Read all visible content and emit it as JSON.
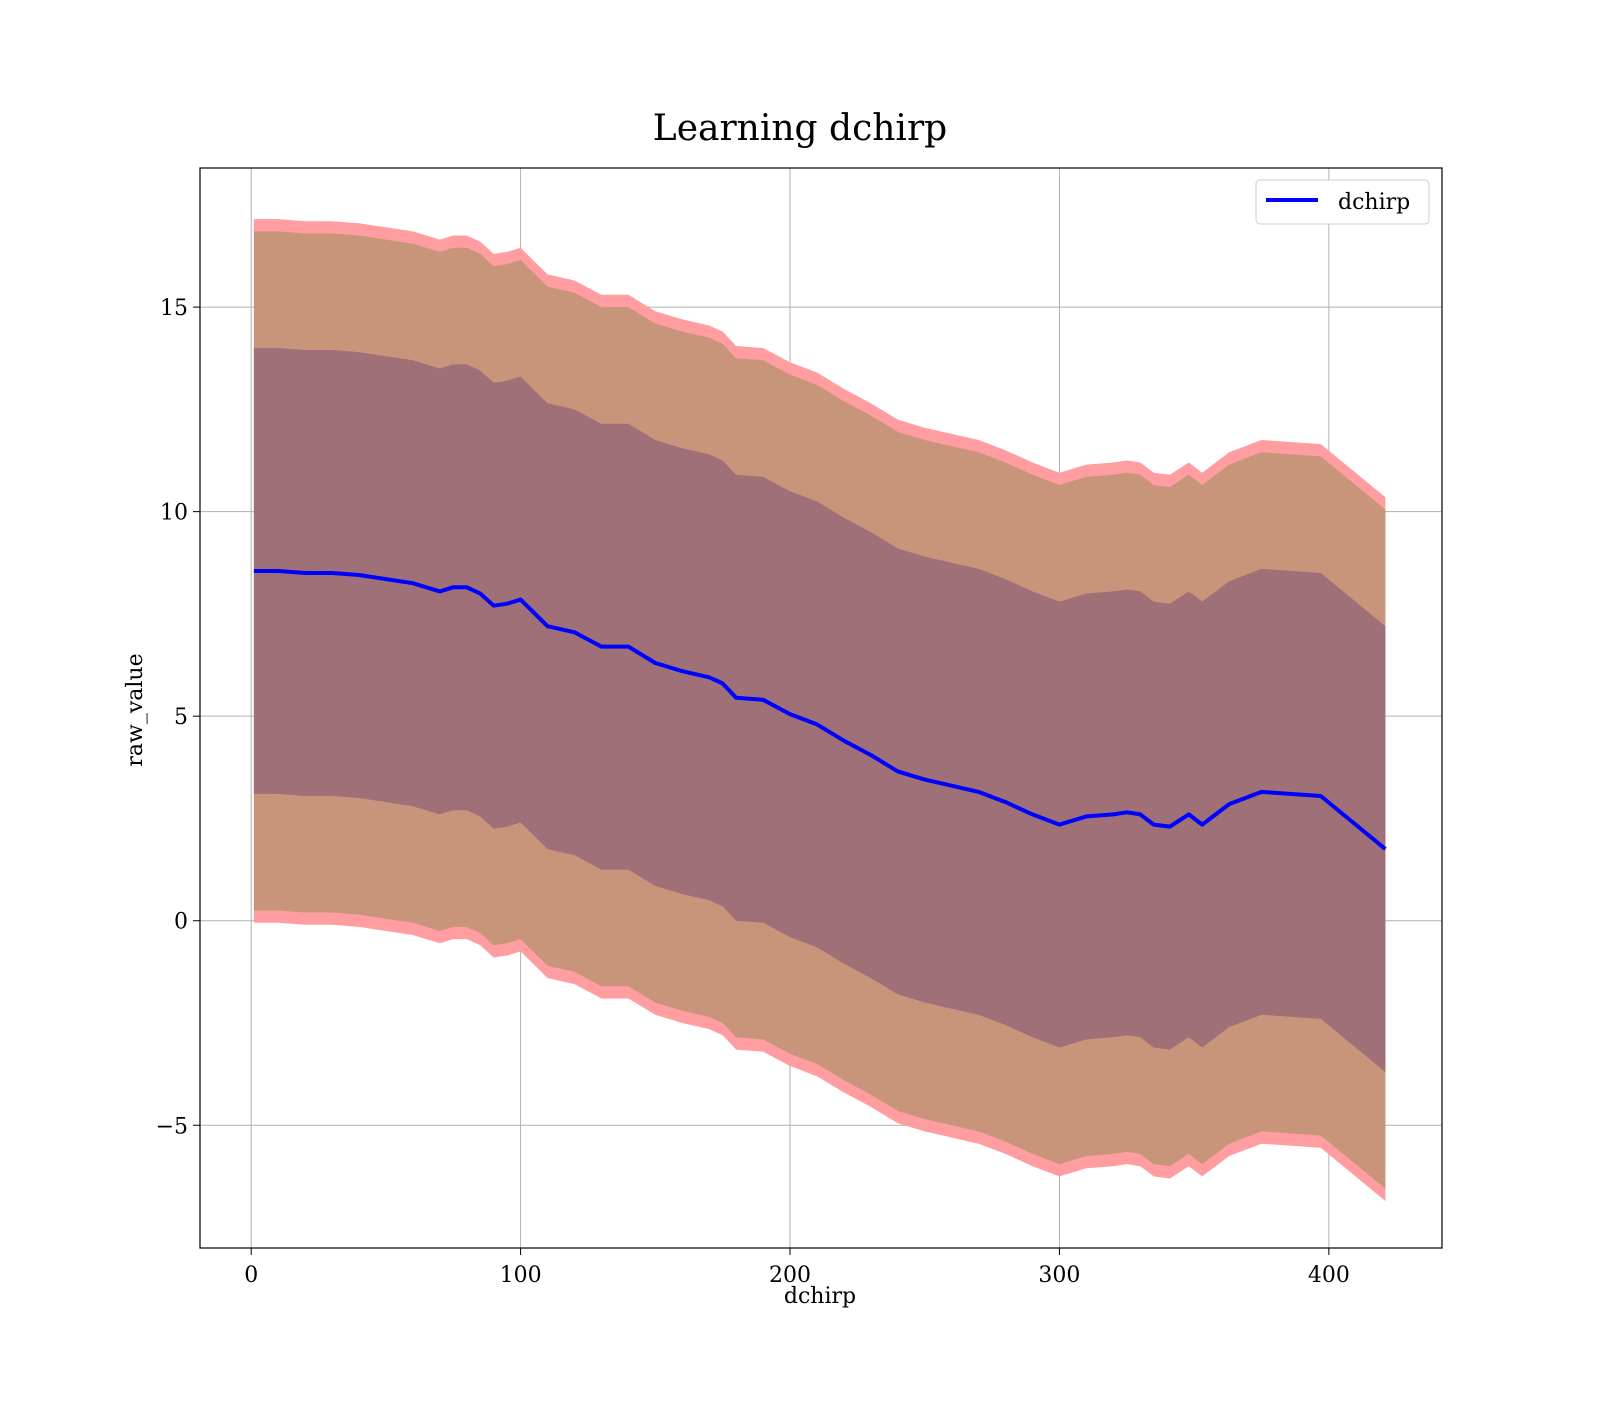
{
  "chart_data": {
    "type": "line",
    "title": "Learning dchirp",
    "xlabel": "dchirp",
    "ylabel": "raw_value",
    "xlim": [
      -19,
      442
    ],
    "ylim": [
      -8,
      18.4
    ],
    "xticks": [
      0,
      100,
      200,
      300,
      400
    ],
    "yticks": [
      -5,
      0,
      5,
      10,
      15
    ],
    "xtick_labels": [
      "0",
      "100",
      "200",
      "300",
      "400"
    ],
    "ytick_labels": [
      "−5",
      "0",
      "5",
      "10",
      "15"
    ],
    "grid": true,
    "legend": {
      "placement": "top-right",
      "entries": [
        "dchirp"
      ]
    },
    "colors": {
      "line": "#0000ff",
      "outer_band": "#ff9da0",
      "middle_band": "#c8957a",
      "inner_band": "#a07078",
      "grid": "#b0b0b0"
    },
    "series": [
      {
        "name": "dchirp",
        "x": [
          1,
          10,
          20,
          30,
          40,
          50,
          60,
          70,
          75,
          80,
          85,
          90,
          95,
          100,
          110,
          120,
          130,
          140,
          150,
          160,
          170,
          175,
          180,
          190,
          200,
          210,
          220,
          230,
          240,
          250,
          260,
          270,
          280,
          290,
          300,
          310,
          320,
          325,
          330,
          335,
          341,
          348,
          353,
          363,
          375,
          397,
          421
        ],
        "y": [
          8.55,
          8.55,
          8.5,
          8.5,
          8.45,
          8.35,
          8.25,
          8.05,
          8.15,
          8.15,
          8.0,
          7.7,
          7.75,
          7.85,
          7.2,
          7.05,
          6.7,
          6.7,
          6.3,
          6.1,
          5.95,
          5.8,
          5.45,
          5.4,
          5.05,
          4.8,
          4.4,
          4.05,
          3.65,
          3.45,
          3.3,
          3.15,
          2.9,
          2.6,
          2.35,
          2.55,
          2.6,
          2.65,
          2.6,
          2.35,
          2.3,
          2.6,
          2.35,
          2.85,
          3.15,
          3.05,
          1.75
        ],
        "inner_band_half_width": [
          5.45,
          5.45,
          5.45,
          5.45,
          5.45,
          5.45,
          5.45,
          5.45,
          5.45,
          5.45,
          5.45,
          5.45,
          5.45,
          5.45,
          5.45,
          5.45,
          5.45,
          5.45,
          5.45,
          5.45,
          5.45,
          5.45,
          5.45,
          5.45,
          5.45,
          5.45,
          5.45,
          5.45,
          5.45,
          5.45,
          5.45,
          5.45,
          5.45,
          5.45,
          5.45,
          5.45,
          5.45,
          5.45,
          5.45,
          5.45,
          5.45,
          5.45,
          5.45,
          5.45,
          5.45,
          5.45,
          5.45
        ],
        "middle_band_half_width": [
          8.3,
          8.3,
          8.3,
          8.3,
          8.3,
          8.3,
          8.3,
          8.3,
          8.3,
          8.3,
          8.3,
          8.3,
          8.3,
          8.3,
          8.3,
          8.3,
          8.3,
          8.3,
          8.3,
          8.3,
          8.3,
          8.3,
          8.3,
          8.3,
          8.3,
          8.3,
          8.3,
          8.3,
          8.3,
          8.3,
          8.3,
          8.3,
          8.3,
          8.3,
          8.3,
          8.3,
          8.3,
          8.3,
          8.3,
          8.3,
          8.3,
          8.3,
          8.3,
          8.3,
          8.3,
          8.3,
          8.3
        ],
        "outer_band_half_width": [
          8.6,
          8.6,
          8.6,
          8.6,
          8.6,
          8.6,
          8.6,
          8.6,
          8.6,
          8.6,
          8.6,
          8.6,
          8.6,
          8.6,
          8.6,
          8.6,
          8.6,
          8.6,
          8.6,
          8.6,
          8.6,
          8.6,
          8.6,
          8.6,
          8.6,
          8.6,
          8.6,
          8.6,
          8.6,
          8.6,
          8.6,
          8.6,
          8.6,
          8.6,
          8.6,
          8.6,
          8.6,
          8.6,
          8.6,
          8.6,
          8.6,
          8.6,
          8.6,
          8.6,
          8.6,
          8.6,
          8.6
        ]
      }
    ]
  }
}
